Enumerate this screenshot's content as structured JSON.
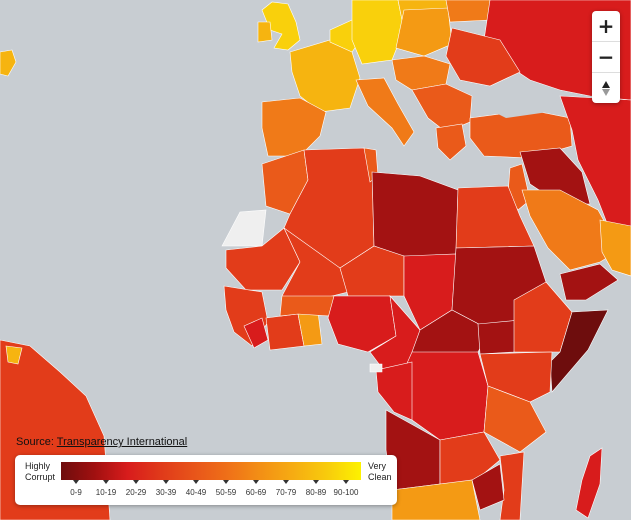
{
  "controls": {
    "zoom_in": "+",
    "zoom_out": "−"
  },
  "source": {
    "label": "Source:",
    "link_text": "Transparency International"
  },
  "legend": {
    "low_label_1": "Highly",
    "low_label_2": "Corrupt",
    "high_label_1": "Very",
    "high_label_2": "Clean",
    "ranges": [
      "0-9",
      "10-19",
      "20-29",
      "30-39",
      "40-49",
      "50-59",
      "60-69",
      "70-79",
      "80-89",
      "90-100"
    ]
  },
  "colors": {
    "water": "#c8cdd2",
    "no_data": "#efefef",
    "band_0_9": "#6e0d0d",
    "band_10_19": "#a31212",
    "band_20_29": "#d81c1c",
    "band_30_39": "#e23c1a",
    "band_40_49": "#ea5a1a",
    "band_50_59": "#f07a18",
    "band_60_69": "#f49a14",
    "band_70_79": "#f6b410",
    "band_80_89": "#f9d00c",
    "band_90_100": "#fdf200"
  }
}
